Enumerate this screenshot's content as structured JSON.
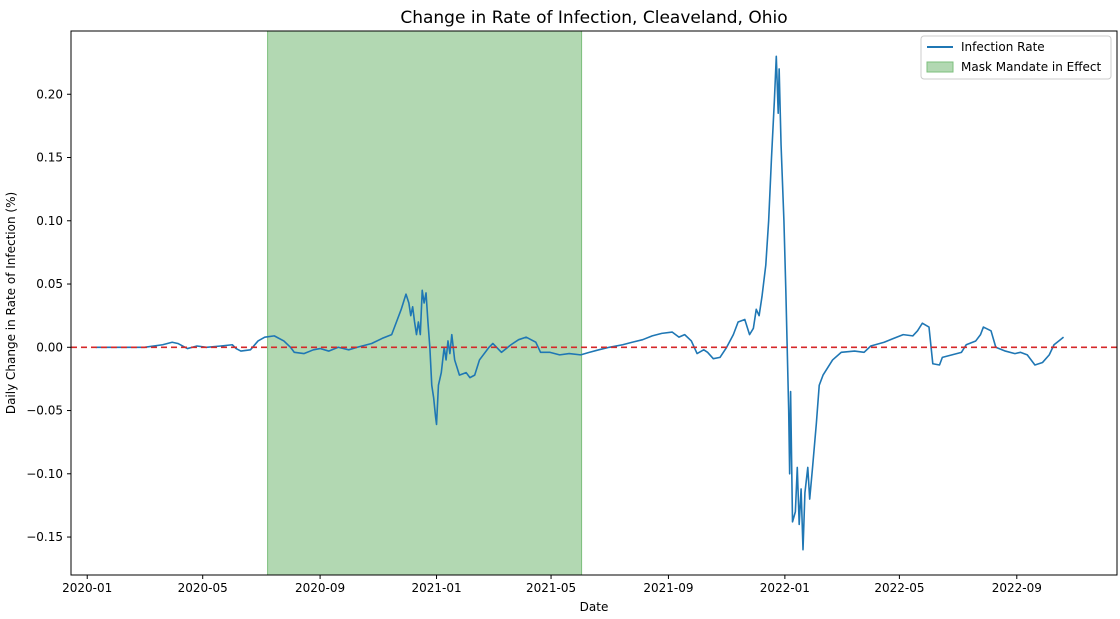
{
  "chart_data": {
    "type": "line",
    "title": "Change in Rate of Infection, Cleaveland, Ohio",
    "xlabel": "Date",
    "ylabel": "Daily Change in Rate of Infection (%)",
    "xlim": [
      "2019-12-15",
      "2022-12-15"
    ],
    "ylim": [
      -0.18,
      0.25
    ],
    "x_ticks": [
      "2020-01-01",
      "2020-05-01",
      "2020-09-01",
      "2021-01-01",
      "2021-05-01",
      "2021-09-01",
      "2022-01-01",
      "2022-05-01",
      "2022-09-01"
    ],
    "x_tick_labels": [
      "2020-01",
      "2020-05",
      "2020-09",
      "2021-01",
      "2021-05",
      "2021-09",
      "2022-01",
      "2022-05",
      "2022-09"
    ],
    "y_ticks": [
      -0.15,
      -0.1,
      -0.05,
      0.0,
      0.05,
      0.1,
      0.15,
      0.2
    ],
    "y_tick_labels": [
      "−0.15",
      "−0.10",
      "−0.05",
      "0.00",
      "0.05",
      "0.10",
      "0.15",
      "0.20"
    ],
    "legend": {
      "position": "top-right",
      "entries": [
        "Infection Rate",
        "Mask Mandate in Effect"
      ]
    },
    "mask_mandate": {
      "start": "2020-07-08",
      "end": "2021-06-02",
      "color": "#b2d8b2",
      "edge_color": "#7cbf7c"
    },
    "reference_line": {
      "y": 0,
      "color": "#d62728",
      "style": "dashed"
    },
    "series": [
      {
        "name": "Infection Rate",
        "color": "#1f77b4",
        "points": [
          [
            "2020-01-10",
            0.0
          ],
          [
            "2020-02-01",
            0.0
          ],
          [
            "2020-03-01",
            0.0
          ],
          [
            "2020-03-20",
            0.002
          ],
          [
            "2020-03-30",
            0.004
          ],
          [
            "2020-04-05",
            0.003
          ],
          [
            "2020-04-15",
            -0.001
          ],
          [
            "2020-04-25",
            0.001
          ],
          [
            "2020-05-05",
            0.0
          ],
          [
            "2020-05-20",
            0.001
          ],
          [
            "2020-06-01",
            0.002
          ],
          [
            "2020-06-05",
            -0.001
          ],
          [
            "2020-06-10",
            -0.003
          ],
          [
            "2020-06-20",
            -0.002
          ],
          [
            "2020-06-28",
            0.005
          ],
          [
            "2020-07-05",
            0.008
          ],
          [
            "2020-07-15",
            0.009
          ],
          [
            "2020-07-25",
            0.005
          ],
          [
            "2020-08-01",
            0.0
          ],
          [
            "2020-08-05",
            -0.004
          ],
          [
            "2020-08-15",
            -0.005
          ],
          [
            "2020-08-25",
            -0.002
          ],
          [
            "2020-09-01",
            -0.001
          ],
          [
            "2020-09-10",
            -0.003
          ],
          [
            "2020-09-20",
            0.0
          ],
          [
            "2020-10-01",
            -0.002
          ],
          [
            "2020-10-10",
            0.0
          ],
          [
            "2020-10-25",
            0.003
          ],
          [
            "2020-11-05",
            0.007
          ],
          [
            "2020-11-15",
            0.01
          ],
          [
            "2020-11-20",
            0.02
          ],
          [
            "2020-11-25",
            0.03
          ],
          [
            "2020-11-30",
            0.042
          ],
          [
            "2020-12-03",
            0.035
          ],
          [
            "2020-12-05",
            0.025
          ],
          [
            "2020-12-07",
            0.032
          ],
          [
            "2020-12-09",
            0.02
          ],
          [
            "2020-12-11",
            0.01
          ],
          [
            "2020-12-13",
            0.02
          ],
          [
            "2020-12-15",
            0.01
          ],
          [
            "2020-12-17",
            0.045
          ],
          [
            "2020-12-19",
            0.035
          ],
          [
            "2020-12-21",
            0.043
          ],
          [
            "2020-12-23",
            0.02
          ],
          [
            "2020-12-25",
            0.0
          ],
          [
            "2020-12-27",
            -0.03
          ],
          [
            "2020-12-29",
            -0.04
          ],
          [
            "2020-12-31",
            -0.055
          ],
          [
            "2021-01-01",
            -0.061
          ],
          [
            "2021-01-03",
            -0.03
          ],
          [
            "2021-01-06",
            -0.02
          ],
          [
            "2021-01-09",
            0.0
          ],
          [
            "2021-01-11",
            -0.01
          ],
          [
            "2021-01-13",
            0.005
          ],
          [
            "2021-01-15",
            -0.005
          ],
          [
            "2021-01-17",
            0.01
          ],
          [
            "2021-01-20",
            -0.01
          ],
          [
            "2021-01-25",
            -0.022
          ],
          [
            "2021-02-01",
            -0.02
          ],
          [
            "2021-02-05",
            -0.024
          ],
          [
            "2021-02-10",
            -0.022
          ],
          [
            "2021-02-15",
            -0.01
          ],
          [
            "2021-02-25",
            0.0
          ],
          [
            "2021-03-01",
            0.003
          ],
          [
            "2021-03-10",
            -0.004
          ],
          [
            "2021-03-20",
            0.002
          ],
          [
            "2021-03-28",
            0.006
          ],
          [
            "2021-04-05",
            0.008
          ],
          [
            "2021-04-15",
            0.004
          ],
          [
            "2021-04-20",
            -0.004
          ],
          [
            "2021-04-30",
            -0.004
          ],
          [
            "2021-05-10",
            -0.006
          ],
          [
            "2021-05-20",
            -0.005
          ],
          [
            "2021-06-01",
            -0.006
          ],
          [
            "2021-06-10",
            -0.004
          ],
          [
            "2021-06-20",
            -0.002
          ],
          [
            "2021-07-01",
            0.0
          ],
          [
            "2021-07-15",
            0.002
          ],
          [
            "2021-07-25",
            0.004
          ],
          [
            "2021-08-05",
            0.006
          ],
          [
            "2021-08-15",
            0.009
          ],
          [
            "2021-08-25",
            0.011
          ],
          [
            "2021-09-05",
            0.012
          ],
          [
            "2021-09-12",
            0.008
          ],
          [
            "2021-09-18",
            0.01
          ],
          [
            "2021-09-25",
            0.005
          ],
          [
            "2021-10-01",
            -0.005
          ],
          [
            "2021-10-08",
            -0.002
          ],
          [
            "2021-10-12",
            -0.004
          ],
          [
            "2021-10-18",
            -0.009
          ],
          [
            "2021-10-25",
            -0.008
          ],
          [
            "2021-11-01",
            0.0
          ],
          [
            "2021-11-08",
            0.01
          ],
          [
            "2021-11-13",
            0.02
          ],
          [
            "2021-11-20",
            0.022
          ],
          [
            "2021-11-25",
            0.01
          ],
          [
            "2021-11-29",
            0.015
          ],
          [
            "2021-12-02",
            0.03
          ],
          [
            "2021-12-05",
            0.025
          ],
          [
            "2021-12-08",
            0.04
          ],
          [
            "2021-12-12",
            0.065
          ],
          [
            "2021-12-15",
            0.1
          ],
          [
            "2021-12-18",
            0.15
          ],
          [
            "2021-12-21",
            0.195
          ],
          [
            "2021-12-23",
            0.23
          ],
          [
            "2021-12-25",
            0.185
          ],
          [
            "2021-12-26",
            0.22
          ],
          [
            "2021-12-28",
            0.16
          ],
          [
            "2021-12-31",
            0.1
          ],
          [
            "2022-01-02",
            0.045
          ],
          [
            "2022-01-05",
            -0.05
          ],
          [
            "2022-01-06",
            -0.1
          ],
          [
            "2022-01-07",
            -0.035
          ],
          [
            "2022-01-09",
            -0.138
          ],
          [
            "2022-01-12",
            -0.13
          ],
          [
            "2022-01-14",
            -0.095
          ],
          [
            "2022-01-16",
            -0.14
          ],
          [
            "2022-01-18",
            -0.112
          ],
          [
            "2022-01-20",
            -0.16
          ],
          [
            "2022-01-22",
            -0.115
          ],
          [
            "2022-01-25",
            -0.095
          ],
          [
            "2022-01-27",
            -0.12
          ],
          [
            "2022-01-30",
            -0.095
          ],
          [
            "2022-02-03",
            -0.06
          ],
          [
            "2022-02-06",
            -0.03
          ],
          [
            "2022-02-10",
            -0.022
          ],
          [
            "2022-02-20",
            -0.01
          ],
          [
            "2022-03-01",
            -0.004
          ],
          [
            "2022-03-15",
            -0.003
          ],
          [
            "2022-03-25",
            -0.004
          ],
          [
            "2022-04-01",
            0.001
          ],
          [
            "2022-04-15",
            0.004
          ],
          [
            "2022-04-25",
            0.007
          ],
          [
            "2022-05-05",
            0.01
          ],
          [
            "2022-05-15",
            0.009
          ],
          [
            "2022-05-20",
            0.013
          ],
          [
            "2022-05-25",
            0.019
          ],
          [
            "2022-06-01",
            0.016
          ],
          [
            "2022-06-05",
            -0.013
          ],
          [
            "2022-06-12",
            -0.014
          ],
          [
            "2022-06-15",
            -0.008
          ],
          [
            "2022-06-25",
            -0.006
          ],
          [
            "2022-07-05",
            -0.004
          ],
          [
            "2022-07-10",
            0.002
          ],
          [
            "2022-07-20",
            0.005
          ],
          [
            "2022-07-25",
            0.01
          ],
          [
            "2022-07-28",
            0.016
          ],
          [
            "2022-08-05",
            0.013
          ],
          [
            "2022-08-10",
            0.0
          ],
          [
            "2022-08-20",
            -0.003
          ],
          [
            "2022-08-30",
            -0.005
          ],
          [
            "2022-09-05",
            -0.004
          ],
          [
            "2022-09-12",
            -0.006
          ],
          [
            "2022-09-20",
            -0.014
          ],
          [
            "2022-09-28",
            -0.012
          ],
          [
            "2022-10-05",
            -0.006
          ],
          [
            "2022-10-10",
            0.002
          ],
          [
            "2022-10-15",
            0.005
          ],
          [
            "2022-10-20",
            0.008
          ]
        ]
      }
    ]
  }
}
